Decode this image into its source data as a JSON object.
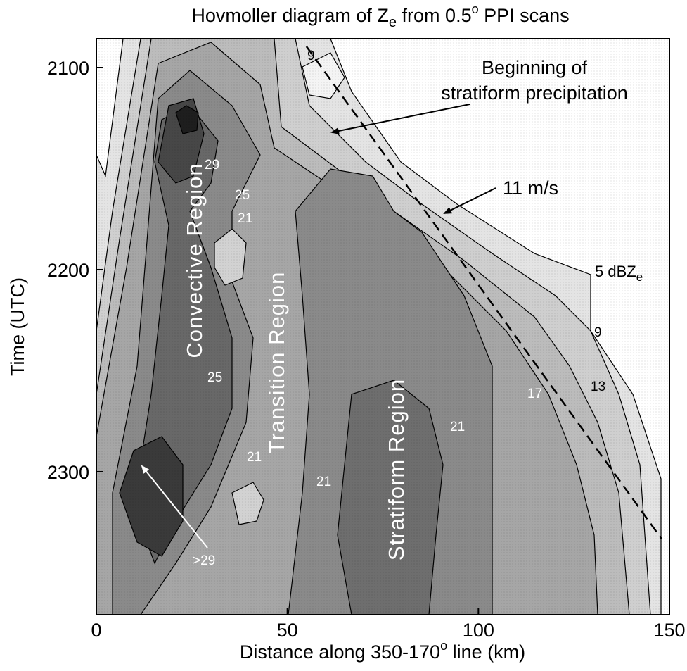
{
  "chart_data": {
    "type": "heatmap",
    "title_main": "Hovmoller diagram of Z",
    "title_sub": "e",
    "title_rest": " from 0.5",
    "title_sup": "o",
    "title_end": " PPI scans",
    "xlabel_main": "Distance along 350-170",
    "xlabel_sup": "o",
    "xlabel_end": " line  (km)",
    "ylabel": "Time  (UTC)",
    "xlim": [
      0,
      150
    ],
    "ylim_time": [
      "2040",
      "2350"
    ],
    "x_ticks": [
      0,
      50,
      100,
      150
    ],
    "x_tick_labels": [
      "0",
      "50",
      "100",
      "150"
    ],
    "y_ticks": [
      "2100",
      "2200",
      "2300"
    ],
    "contour_levels_dBZe": [
      5,
      9,
      13,
      17,
      21,
      25,
      29
    ],
    "dashed_line": {
      "label": "11 m/s",
      "start": {
        "x_km": 55,
        "time": "2100"
      },
      "end": {
        "x_km": 148,
        "time": "2320"
      }
    },
    "annotations": {
      "stratiform_beginning_line1": "Beginning of",
      "stratiform_beginning_line2": "stratiform precipitation",
      "speed_label": "11 m/s",
      "dbz5_prefix": "5 dBZ",
      "dbz5_sub": "e",
      "level_9_right": "9",
      "level_13_right": "13",
      "level_9_top": "9"
    },
    "regions": {
      "convective": "Convective Region",
      "transition": "Transition Region",
      "stratiform": "Stratiform Region"
    },
    "contour_labels": {
      "c29": "29",
      "c25_upper": "25",
      "c21_upper": "21",
      "c25_lower": "25",
      "c21_lower": "21",
      "c21_transition": "21",
      "c21_stratiform": "21",
      "c17": "17",
      "max_label": ">29"
    }
  }
}
